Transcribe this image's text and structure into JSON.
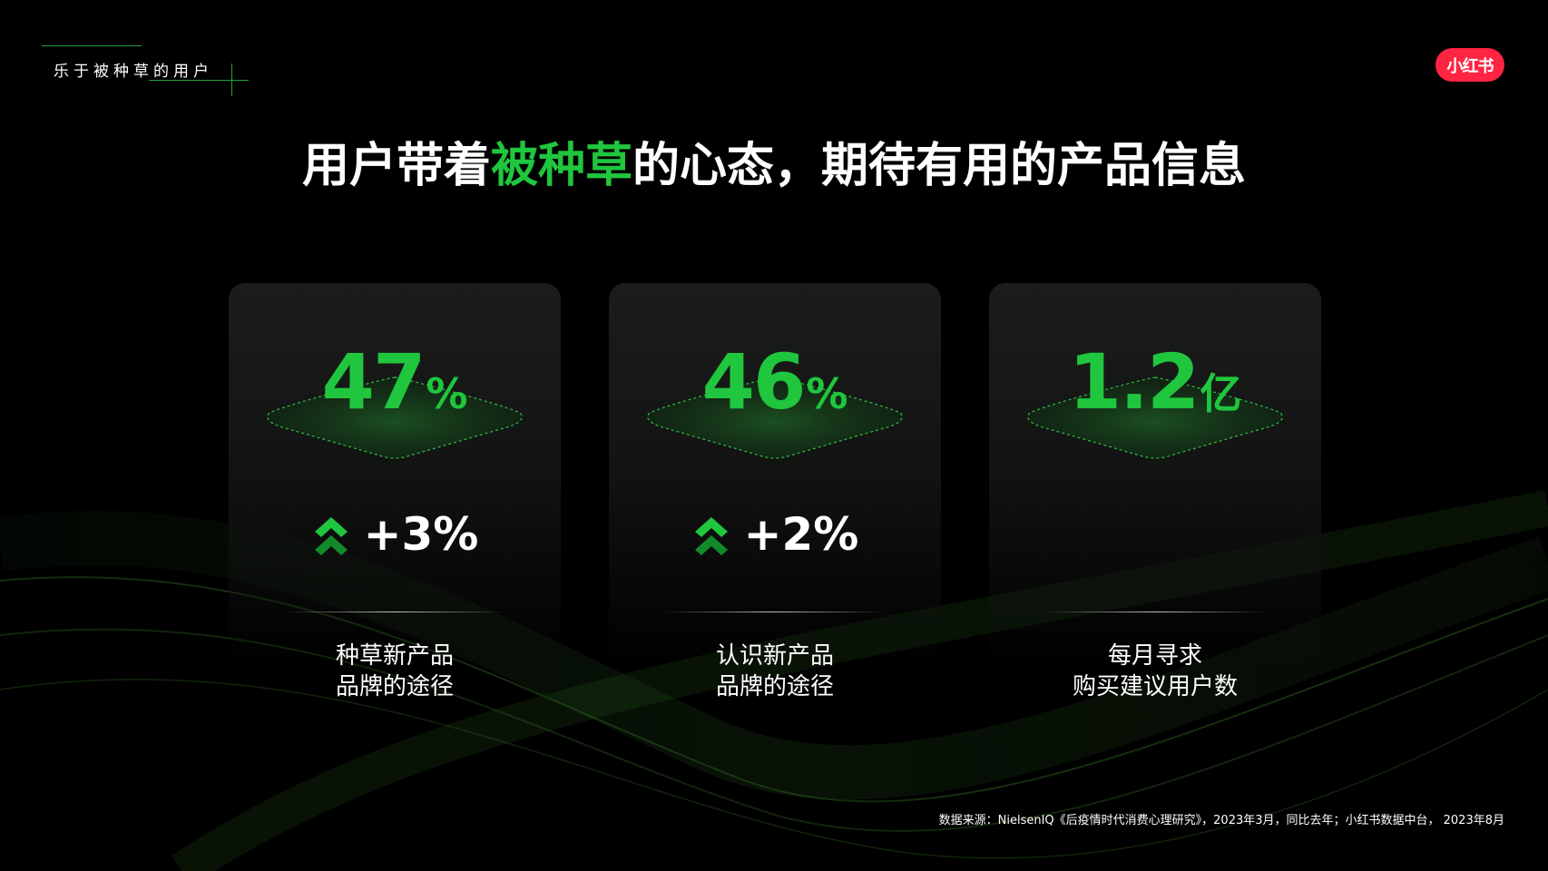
{
  "section_tag": "乐于被种草的用户",
  "logo_text": "小红书",
  "headline": {
    "before": "用户带着",
    "highlight": "被种草",
    "after": "的心态，期待有用的产品信息"
  },
  "colors": {
    "accent_green": "#1fc63e",
    "logo_red": "#ff2442",
    "background": "#000000"
  },
  "stats": [
    {
      "value": "47",
      "unit": "%",
      "arrow_icon": "double-chevron-up-icon",
      "growth": "+3%",
      "label_line1": "种草新产品",
      "label_line2": "品牌的途径"
    },
    {
      "value": "46",
      "unit": "%",
      "arrow_icon": "double-chevron-up-icon",
      "growth": "+2%",
      "label_line1": "认识新产品",
      "label_line2": "品牌的途径"
    },
    {
      "value": "1.2",
      "unit": "亿",
      "label_line1": "每月寻求",
      "label_line2": "购买建议用户数"
    }
  ],
  "source_note": "数据来源：NielsenIQ《后疫情时代消费心理研究》，2023年3月，同比去年；小红书数据中台， 2023年8月"
}
